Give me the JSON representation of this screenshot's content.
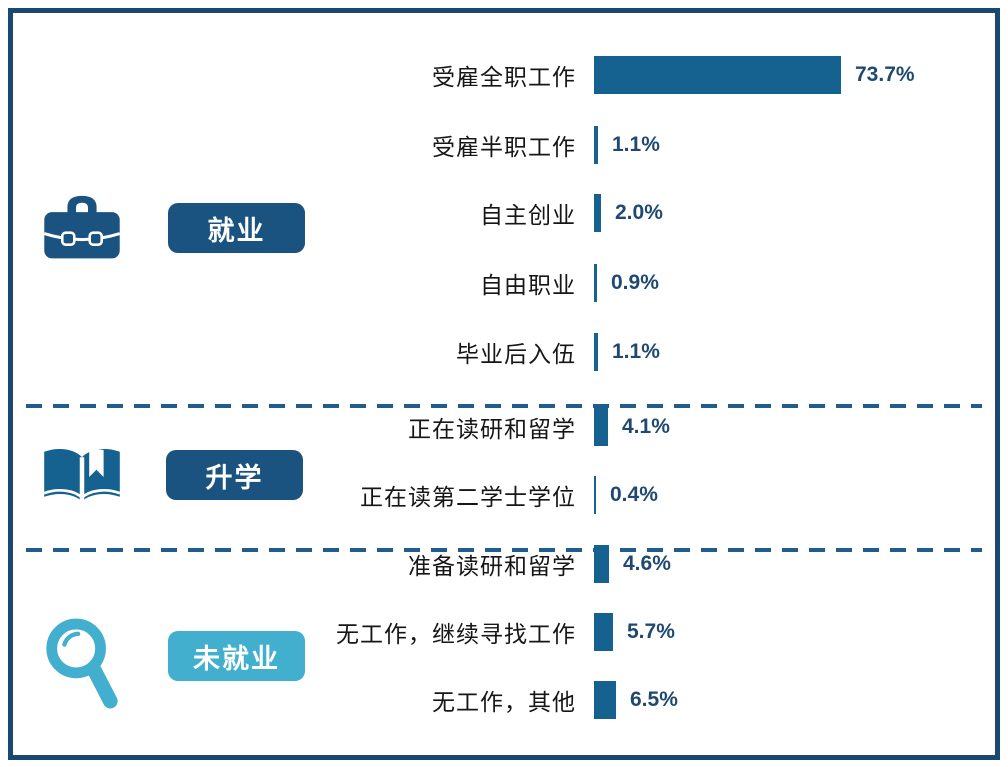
{
  "colors": {
    "frame_border": "#1B4871",
    "bar": "#15618F",
    "value_text": "#1F4971",
    "navy_badge": "#1A5380",
    "teal_badge": "#41AFCD",
    "dashed_divider": "#1F5D8D",
    "background": "#FFFFFF"
  },
  "chart_data": {
    "type": "bar",
    "orientation": "horizontal",
    "unit": "%",
    "axes_hidden": true,
    "value_labels_shown": true,
    "value_range": [
      0,
      80
    ],
    "groups": [
      {
        "badge": "就业",
        "icon": "briefcase-icon",
        "badge_color": "#1A5380",
        "items": [
          {
            "label": "受雇全职工作",
            "value": 73.7,
            "value_label": "73.7%"
          },
          {
            "label": "受雇半职工作",
            "value": 1.1,
            "value_label": "1.1%"
          },
          {
            "label": "自主创业",
            "value": 2.0,
            "value_label": "2.0%"
          },
          {
            "label": "自由职业",
            "value": 0.9,
            "value_label": "0.9%"
          },
          {
            "label": "毕业后入伍",
            "value": 1.1,
            "value_label": "1.1%"
          }
        ]
      },
      {
        "badge": "升学",
        "icon": "book-icon",
        "badge_color": "#1A5380",
        "items": [
          {
            "label": "正在读研和留学",
            "value": 4.1,
            "value_label": "4.1%"
          },
          {
            "label": "正在读第二学士学位",
            "value": 0.4,
            "value_label": "0.4%"
          }
        ]
      },
      {
        "badge": "未就业",
        "icon": "magnifier-icon",
        "badge_color": "#41AFCD",
        "items": [
          {
            "label": "准备读研和留学",
            "value": 4.6,
            "value_label": "4.6%"
          },
          {
            "label": "无工作，继续寻找工作",
            "value": 5.7,
            "value_label": "5.7%"
          },
          {
            "label": "无工作，其他",
            "value": 6.5,
            "value_label": "6.5%"
          }
        ]
      }
    ]
  }
}
